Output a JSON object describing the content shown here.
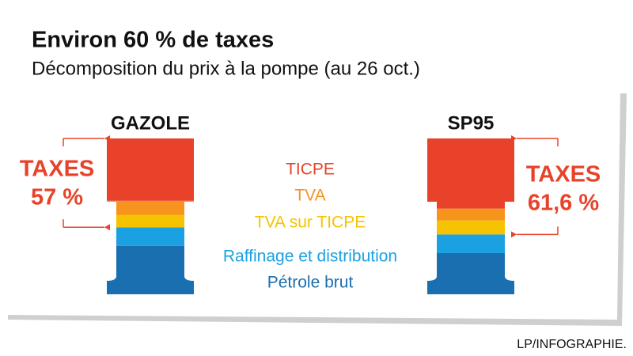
{
  "chart_data": {
    "type": "pump-stack",
    "title": "Environ 60 % de taxes",
    "subtitle": "Décomposition du prix à la pompe (au 26 oct.)",
    "categories": [
      "GAZOLE",
      "SP95"
    ],
    "series": [
      {
        "name": "TICPE",
        "color": "#e8432a",
        "values": [
          40,
          45
        ]
      },
      {
        "name": "TVA",
        "color": "#f7941d",
        "values": [
          9,
          7.6
        ]
      },
      {
        "name": "TVA sur TICPE",
        "color": "#f7c300",
        "values": [
          8,
          9
        ]
      },
      {
        "name": "Raffinage et distribution",
        "color": "#1ba1e2",
        "values": [
          12,
          12
        ]
      },
      {
        "name": "Pétrole brut",
        "color": "#1a6fb0",
        "values": [
          31,
          26.4
        ]
      }
    ],
    "taxes_label": "TAXES",
    "taxes_totals": [
      57,
      61.6
    ],
    "taxes_total_labels": [
      "57 %",
      "61,6 %"
    ],
    "source": "LP/INFOGRAPHIE."
  }
}
